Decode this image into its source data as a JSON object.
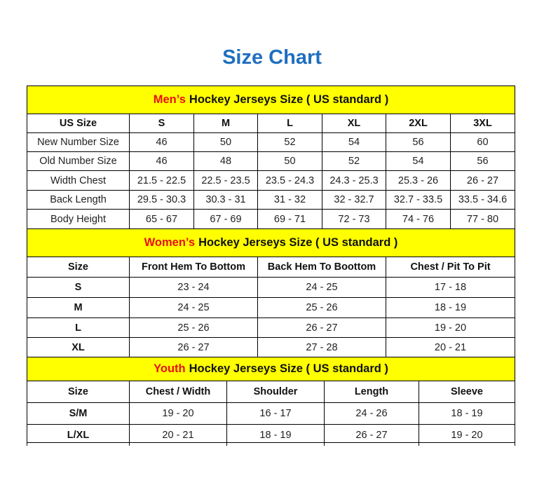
{
  "title": "Size Chart",
  "mens": {
    "highlight": "Men’s",
    "title": "Hockey Jerseys Size ( US standard )",
    "header": [
      "US Size",
      "S",
      "M",
      "L",
      "XL",
      "2XL",
      "3XL"
    ],
    "rows": [
      [
        "New Number Size",
        "46",
        "50",
        "52",
        "54",
        "56",
        "60"
      ],
      [
        "Old Number Size",
        "46",
        "48",
        "50",
        "52",
        "54",
        "56"
      ],
      [
        "Width Chest",
        "21.5 - 22.5",
        "22.5 - 23.5",
        "23.5 - 24.3",
        "24.3 - 25.3",
        "25.3 - 26",
        "26 - 27"
      ],
      [
        "Back Length",
        "29.5 - 30.3",
        "30.3 - 31",
        "31 - 32",
        "32 - 32.7",
        "32.7 - 33.5",
        "33.5 - 34.6"
      ],
      [
        "Body Height",
        "65 - 67",
        "67 - 69",
        "69 - 71",
        "72 - 73",
        "74 - 76",
        "77 - 80"
      ]
    ]
  },
  "womens": {
    "highlight": "Women’s",
    "title": "Hockey Jerseys Size ( US standard )",
    "header": [
      "Size",
      "Front Hem To Bottom",
      "Back Hem To Boottom",
      "Chest / Pit To Pit"
    ],
    "rows": [
      [
        "S",
        "23 - 24",
        "24 - 25",
        "17 - 18"
      ],
      [
        "M",
        "24 - 25",
        "25 - 26",
        "18 - 19"
      ],
      [
        "L",
        "25 - 26",
        "26 - 27",
        "19 - 20"
      ],
      [
        "XL",
        "26 - 27",
        "27 - 28",
        "20 - 21"
      ]
    ]
  },
  "youth": {
    "highlight": "Youth",
    "title": "Hockey Jerseys Size ( US standard )",
    "header": [
      "Size",
      "Chest / Width",
      "Shoulder",
      "Length",
      "Sleeve"
    ],
    "rows": [
      [
        "S/M",
        "19 - 20",
        "16 - 17",
        "24 - 26",
        "18 - 19"
      ],
      [
        "L/XL",
        "20 - 21",
        "18 - 19",
        "26 - 27",
        "19 - 20"
      ]
    ]
  }
}
